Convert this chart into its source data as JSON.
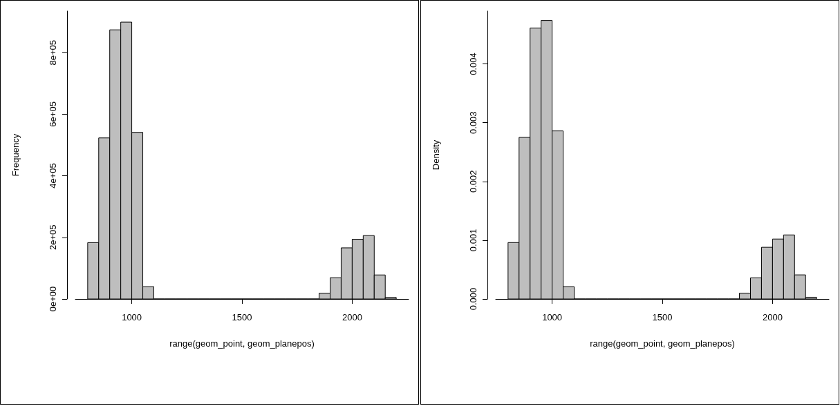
{
  "chart_data": [
    {
      "type": "histogram",
      "xlabel": "range(geom_point, geom_planepos)",
      "ylabel": "Frequency",
      "color": "#bebebe",
      "bins": [
        800,
        850,
        900,
        950,
        1000,
        1050,
        1100,
        1150,
        1200,
        1250,
        1300,
        1350,
        1400,
        1450,
        1500,
        1550,
        1600,
        1650,
        1700,
        1750,
        1800,
        1850,
        1900,
        1950,
        2000,
        2050,
        2100,
        2150,
        2200
      ],
      "values": [
        183000,
        523000,
        874000,
        899000,
        541000,
        40000,
        0,
        0,
        0,
        0,
        0,
        0,
        0,
        0,
        0,
        0,
        0,
        0,
        0,
        0,
        0,
        19000,
        69000,
        166000,
        194000,
        206000,
        78000,
        5000
      ],
      "xlim": [
        744,
        2256
      ],
      "xticks": [
        1000,
        1500,
        2000
      ],
      "ylim": [
        0,
        935000
      ],
      "yticks": [
        {
          "value": 0,
          "label": "0e+00"
        },
        {
          "value": 200000,
          "label": "2e+05"
        },
        {
          "value": 400000,
          "label": "4e+05"
        },
        {
          "value": 600000,
          "label": "6e+05"
        },
        {
          "value": 800000,
          "label": "8e+05"
        }
      ],
      "grid": false
    },
    {
      "type": "histogram",
      "xlabel": "range(geom_point, geom_planepos)",
      "ylabel": "Density",
      "color": "#bebebe",
      "bins": [
        800,
        850,
        900,
        950,
        1000,
        1050,
        1100,
        1150,
        1200,
        1250,
        1300,
        1350,
        1400,
        1450,
        1500,
        1550,
        1600,
        1650,
        1700,
        1750,
        1800,
        1850,
        1900,
        1950,
        2000,
        2050,
        2100,
        2150,
        2200
      ],
      "values": [
        0.00096,
        0.00275,
        0.00461,
        0.00474,
        0.00286,
        0.00021,
        0,
        0,
        0,
        0,
        0,
        0,
        0,
        0,
        0,
        0,
        0,
        0,
        0,
        0,
        0,
        0.0001,
        0.00036,
        0.00088,
        0.00102,
        0.00109,
        0.00041,
        3e-05
      ],
      "xlim": [
        744,
        2256
      ],
      "xticks": [
        1000,
        1500,
        2000
      ],
      "ylim": [
        0,
        0.0049
      ],
      "yticks": [
        {
          "value": 0,
          "label": "0.000"
        },
        {
          "value": 0.001,
          "label": "0.001"
        },
        {
          "value": 0.002,
          "label": "0.002"
        },
        {
          "value": 0.003,
          "label": "0.003"
        },
        {
          "value": 0.004,
          "label": "0.004"
        }
      ],
      "grid": false
    }
  ]
}
